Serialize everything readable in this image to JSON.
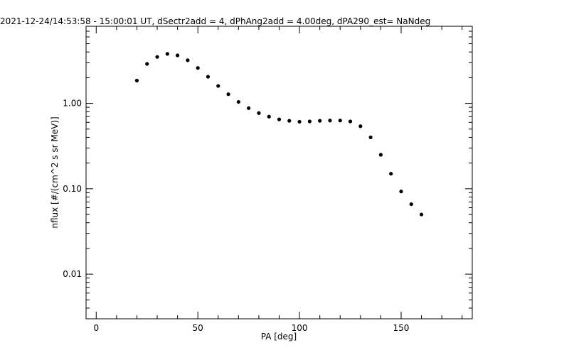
{
  "chart_data": {
    "type": "scatter",
    "title": "2021-12-24/14:53:58 - 15:00:01 UT, dSectr2add = 4, dPhAng2add = 4.00deg, dPA290_est=    NaNdeg",
    "xlabel": "PA [deg]",
    "ylabel": "nflux [#/(cm^2 s sr MeV)]",
    "xlim": [
      -5,
      185
    ],
    "ylim": [
      0.003,
      8
    ],
    "yscale": "log",
    "xticks": [
      0,
      50,
      100,
      150
    ],
    "xtick_labels": [
      "0",
      "50",
      "100",
      "150"
    ],
    "yticks": [
      0.01,
      0.1,
      1.0
    ],
    "ytick_labels": [
      "0.01",
      "0.10",
      "1.00"
    ],
    "grid": false,
    "series": [
      {
        "x": [
          20,
          25,
          30,
          35,
          40,
          45,
          50,
          55,
          60,
          65,
          70,
          75,
          80,
          85,
          90,
          95,
          100,
          105,
          110,
          115,
          120,
          125,
          130,
          135,
          140,
          145,
          150,
          155,
          160
        ],
        "y": [
          1.85,
          2.9,
          3.5,
          3.8,
          3.65,
          3.2,
          2.6,
          2.05,
          1.6,
          1.28,
          1.04,
          0.88,
          0.77,
          0.7,
          0.65,
          0.625,
          0.61,
          0.615,
          0.625,
          0.63,
          0.63,
          0.615,
          0.54,
          0.4,
          0.25,
          0.15,
          0.093,
          0.066,
          0.05
        ]
      }
    ]
  }
}
